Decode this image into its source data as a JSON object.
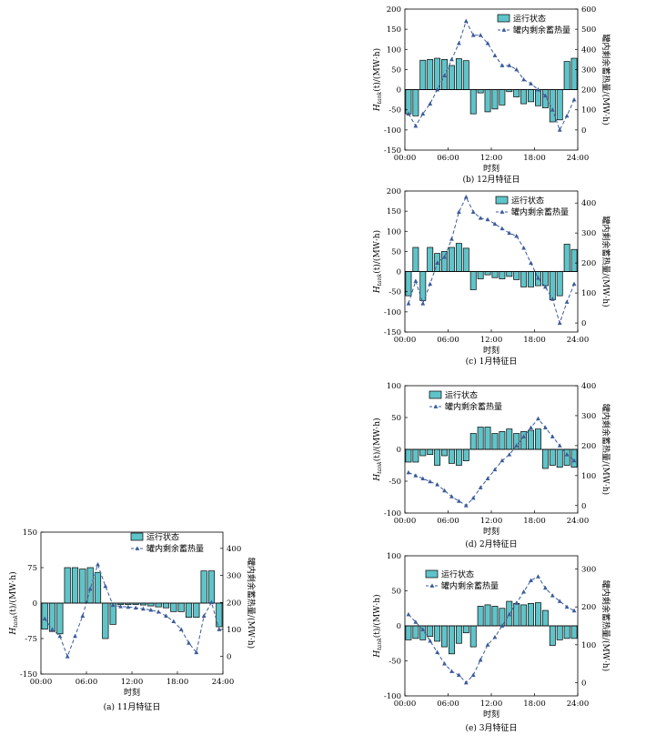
{
  "legend": {
    "bar_label": "运行状态",
    "line_label": "罐内剩余蓄热量"
  },
  "x_tick_labels": [
    "00:00",
    "06:00",
    "12:00",
    "18:00",
    "24:00"
  ],
  "colors": {
    "bar_fill": "#5fc4c9",
    "bar_stroke": "#000000",
    "line": "#3a5b9a",
    "marker": "#3a5b9a"
  },
  "chart_data": [
    {
      "type": "bar",
      "caption": "(a) 11月特征日",
      "xlabel": "时刻",
      "ylabel_left_main": "H",
      "ylabel_left_sub": "tank",
      "ylabel_left_rest": "(t)/(MW·h)",
      "ylabel_right": "罐内剩余蓄热量/(MW·h)",
      "xlim": [
        0,
        24
      ],
      "left_ylim": [
        -150,
        150
      ],
      "left_ticks": [
        -150,
        -75,
        0,
        75,
        150
      ],
      "right_ylim": [
        -65,
        460
      ],
      "right_ticks": [
        0,
        100,
        200,
        300,
        400
      ],
      "series": [
        {
          "name": "运行状态",
          "type": "bar",
          "x": [
            1,
            2,
            3,
            4,
            5,
            6,
            7,
            8,
            9,
            10,
            11,
            12,
            13,
            14,
            15,
            16,
            17,
            18,
            19,
            20,
            21,
            22,
            23,
            24
          ],
          "values": [
            -55,
            -60,
            -65,
            75,
            75,
            72,
            75,
            65,
            -75,
            -45,
            -3,
            -3,
            -3,
            -4,
            -6,
            -8,
            -10,
            -18,
            -18,
            -30,
            -30,
            68,
            68,
            -50
          ]
        },
        {
          "name": "罐内剩余蓄热量",
          "type": "line",
          "x": [
            1,
            2,
            3,
            4,
            5,
            6,
            7,
            8,
            9,
            10,
            11,
            12,
            13,
            14,
            15,
            16,
            17,
            18,
            19,
            20,
            21,
            22,
            23,
            24
          ],
          "values": [
            140,
            100,
            75,
            0,
            75,
            150,
            250,
            340,
            260,
            190,
            185,
            183,
            180,
            176,
            172,
            165,
            150,
            130,
            100,
            50,
            15,
            150,
            200,
            100
          ]
        }
      ]
    },
    {
      "type": "bar",
      "caption": "(b) 12月特征日",
      "xlabel": "时刻",
      "ylabel_left_main": "H",
      "ylabel_left_sub": "tank",
      "ylabel_left_rest": "(t)/(MW·h)",
      "ylabel_right": "罐内剩余蓄热量/(MW·h)",
      "xlim": [
        0,
        24
      ],
      "left_ylim": [
        -150,
        200
      ],
      "left_ticks": [
        -150,
        -100,
        -50,
        0,
        50,
        100,
        150,
        200
      ],
      "right_ylim": [
        -100,
        600
      ],
      "right_ticks": [
        0,
        100,
        200,
        300,
        400,
        500,
        600
      ],
      "series": [
        {
          "name": "运行状态",
          "type": "bar",
          "x": [
            1,
            2,
            3,
            4,
            5,
            6,
            7,
            8,
            9,
            10,
            11,
            12,
            13,
            14,
            15,
            16,
            17,
            18,
            19,
            20,
            21,
            22,
            23,
            24
          ],
          "values": [
            -60,
            -65,
            73,
            75,
            78,
            75,
            60,
            77,
            72,
            -60,
            -8,
            -55,
            -48,
            -38,
            -5,
            -18,
            -35,
            -30,
            -40,
            -45,
            -80,
            -75,
            70,
            78
          ]
        },
        {
          "name": "罐内剩余蓄热量",
          "type": "line",
          "x": [
            1,
            2,
            3,
            4,
            5,
            6,
            7,
            8,
            9,
            10,
            11,
            12,
            13,
            14,
            15,
            16,
            17,
            18,
            19,
            20,
            21,
            22,
            23,
            24
          ],
          "values": [
            80,
            20,
            80,
            130,
            200,
            270,
            350,
            430,
            540,
            470,
            470,
            430,
            370,
            320,
            320,
            300,
            250,
            230,
            200,
            170,
            100,
            0,
            70,
            150
          ]
        }
      ]
    },
    {
      "type": "bar",
      "caption": "(c) 1月特征日",
      "xlabel": "时刻",
      "ylabel_left_main": "H",
      "ylabel_left_sub": "tank",
      "ylabel_left_rest": "(t)/(MW·h)",
      "ylabel_right": "罐内剩余蓄热量/(MW·h)",
      "xlim": [
        0,
        24
      ],
      "left_ylim": [
        -150,
        200
      ],
      "left_ticks": [
        -150,
        -100,
        -50,
        0,
        50,
        100,
        150,
        200
      ],
      "right_ylim": [
        -30,
        440
      ],
      "right_ticks": [
        0,
        100,
        200,
        300,
        400
      ],
      "series": [
        {
          "name": "运行状态",
          "type": "bar",
          "x": [
            1,
            2,
            3,
            4,
            5,
            6,
            7,
            8,
            9,
            10,
            11,
            12,
            13,
            14,
            15,
            16,
            17,
            18,
            19,
            20,
            21,
            22,
            23,
            24
          ],
          "values": [
            -60,
            60,
            -72,
            60,
            45,
            50,
            60,
            70,
            58,
            -45,
            -18,
            -8,
            -15,
            -18,
            -12,
            -20,
            -38,
            -38,
            -35,
            -35,
            -70,
            -60,
            68,
            55
          ]
        },
        {
          "name": "罐内剩余蓄热量",
          "type": "line",
          "x": [
            1,
            2,
            3,
            4,
            5,
            6,
            7,
            8,
            9,
            10,
            11,
            12,
            13,
            14,
            15,
            16,
            17,
            18,
            19,
            20,
            21,
            22,
            23,
            24
          ],
          "values": [
            65,
            140,
            65,
            130,
            200,
            220,
            280,
            370,
            420,
            370,
            350,
            345,
            330,
            315,
            300,
            290,
            250,
            200,
            150,
            120,
            80,
            0,
            70,
            130
          ]
        }
      ]
    },
    {
      "type": "bar",
      "caption": "(d) 2月特征日",
      "xlabel": "时刻",
      "ylabel_left_main": "H",
      "ylabel_left_sub": "tank",
      "ylabel_left_rest": "(t)/(MW·h)",
      "ylabel_right": "罐内剩余蓄热量/(MW·h)",
      "xlim": [
        0,
        24
      ],
      "left_ylim": [
        -100,
        100
      ],
      "left_ticks": [
        -100,
        -50,
        0,
        50,
        100
      ],
      "right_ylim": [
        -25,
        400
      ],
      "right_ticks": [
        0,
        100,
        200,
        300,
        400
      ],
      "series": [
        {
          "name": "运行状态",
          "type": "bar",
          "x": [
            1,
            2,
            3,
            4,
            5,
            6,
            7,
            8,
            9,
            10,
            11,
            12,
            13,
            14,
            15,
            16,
            17,
            18,
            19,
            20,
            21,
            22,
            23,
            24
          ],
          "values": [
            -20,
            -20,
            -10,
            -8,
            -25,
            -10,
            -22,
            -25,
            -18,
            25,
            35,
            35,
            25,
            28,
            32,
            25,
            28,
            30,
            32,
            -30,
            -25,
            -28,
            -25,
            -28
          ]
        },
        {
          "name": "罐内剩余蓄热量",
          "type": "line",
          "x": [
            1,
            2,
            3,
            4,
            5,
            6,
            7,
            8,
            9,
            10,
            11,
            12,
            13,
            14,
            15,
            16,
            17,
            18,
            19,
            20,
            21,
            22,
            23,
            24
          ],
          "values": [
            110,
            100,
            90,
            80,
            70,
            50,
            30,
            15,
            0,
            25,
            60,
            90,
            120,
            150,
            170,
            200,
            230,
            260,
            290,
            260,
            230,
            200,
            170,
            150
          ]
        }
      ]
    },
    {
      "type": "bar",
      "caption": "(e) 3月特征日",
      "xlabel": "时刻",
      "ylabel_left_main": "H",
      "ylabel_left_sub": "tank",
      "ylabel_left_rest": "(t)/(MW·h)",
      "ylabel_right": "罐内剩余蓄热量/(MW·h)",
      "xlim": [
        0,
        24
      ],
      "left_ylim": [
        -100,
        100
      ],
      "left_ticks": [
        -100,
        -50,
        0,
        50,
        100
      ],
      "right_ylim": [
        -35,
        335
      ],
      "right_ticks": [
        0,
        100,
        200,
        300
      ],
      "series": [
        {
          "name": "运行状态",
          "type": "bar",
          "x": [
            1,
            2,
            3,
            4,
            5,
            6,
            7,
            8,
            9,
            10,
            11,
            12,
            13,
            14,
            15,
            16,
            17,
            18,
            19,
            20,
            21,
            22,
            23,
            24
          ],
          "values": [
            -20,
            -18,
            -20,
            -15,
            -22,
            -30,
            -40,
            -25,
            -10,
            -30,
            28,
            30,
            28,
            25,
            35,
            32,
            30,
            32,
            33,
            22,
            -28,
            -20,
            -18,
            -18
          ]
        },
        {
          "name": "罐内剩余蓄热量",
          "type": "line",
          "x": [
            1,
            2,
            3,
            4,
            5,
            6,
            7,
            8,
            9,
            10,
            11,
            12,
            13,
            14,
            15,
            16,
            17,
            18,
            19,
            20,
            21,
            22,
            23,
            24
          ],
          "values": [
            180,
            160,
            140,
            110,
            80,
            50,
            30,
            20,
            0,
            20,
            60,
            100,
            120,
            150,
            180,
            210,
            240,
            270,
            280,
            250,
            230,
            215,
            200,
            190
          ]
        }
      ]
    }
  ]
}
